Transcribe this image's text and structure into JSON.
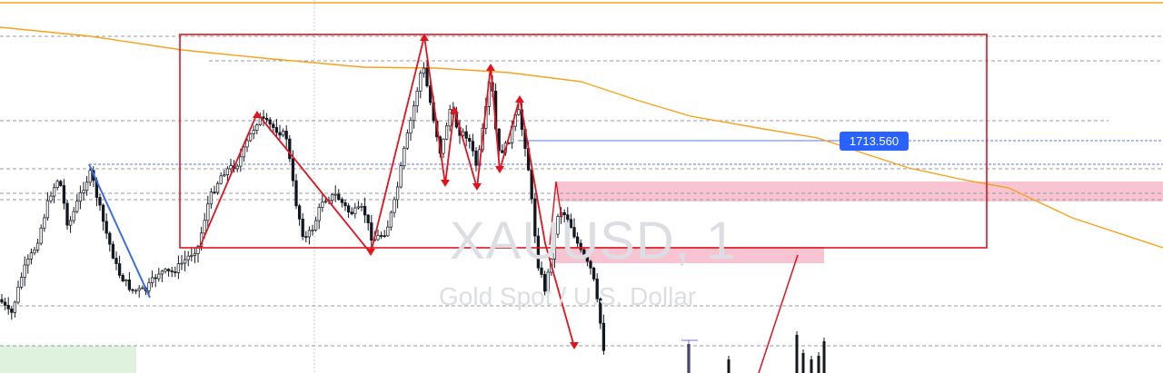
{
  "watermark": {
    "symbol": "XAUUSD, 1",
    "description": "Gold Spot / U.S. Dollar"
  },
  "price_label": "1713.560",
  "colors": {
    "background": "#ffffff",
    "candle": "#131722",
    "grid": "#9598a1",
    "ma_line": "#f7a21b",
    "drawing_red": "#e0141e",
    "drawing_blue": "#3b6fe0",
    "zone_pink": "#f8c4d2",
    "zone_green": "#dff2dd",
    "price_line": "#2962ff"
  },
  "chart_data": {
    "type": "candlestick",
    "symbol": "XAUUSD",
    "timeframe": "1",
    "price_level": 1713.56,
    "annotations": [
      "rectangle-range",
      "zigzag-pattern",
      "supply-zones",
      "moving-average"
    ]
  }
}
